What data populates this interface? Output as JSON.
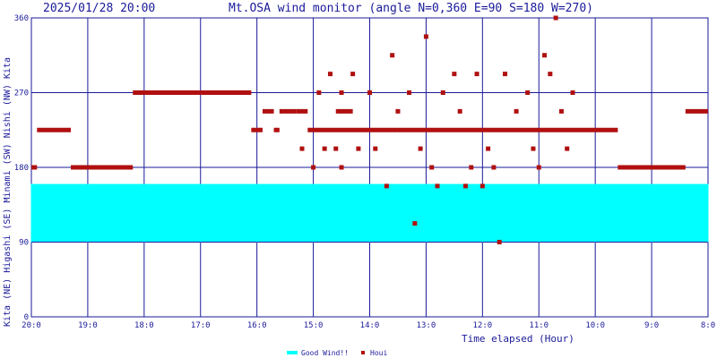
{
  "chart_data": {
    "type": "scatter",
    "timestamp": "2025/01/28 20:00",
    "title": "Mt.OSA wind monitor (angle N=0,360 E=90 S=180 W=270)",
    "xlabel": "Time elapsed (Hour)",
    "ylabel": "Kita (NE) Higashi (SE) Minami (SW) Nishi (NW) Kita",
    "x_unit": "hours elapsed from 20:00",
    "x_range": [
      0,
      12
    ],
    "x_ticks": [
      {
        "x": 0,
        "label": "20:0"
      },
      {
        "x": 1,
        "label": "19:0"
      },
      {
        "x": 2,
        "label": "18:0"
      },
      {
        "x": 3,
        "label": "17:0"
      },
      {
        "x": 4,
        "label": "16:0"
      },
      {
        "x": 5,
        "label": "15:0"
      },
      {
        "x": 6,
        "label": "14:0"
      },
      {
        "x": 7,
        "label": "13:0"
      },
      {
        "x": 8,
        "label": "12:0"
      },
      {
        "x": 9,
        "label": "11:0"
      },
      {
        "x": 10,
        "label": "10:0"
      },
      {
        "x": 11,
        "label": "9:0"
      },
      {
        "x": 12,
        "label": "8:0"
      }
    ],
    "y_range": [
      0,
      360
    ],
    "y_ticks": [
      {
        "y": 0,
        "label": "0"
      },
      {
        "y": 90,
        "label": "90"
      },
      {
        "y": 180,
        "label": "180"
      },
      {
        "y": 270,
        "label": "270"
      },
      {
        "y": 360,
        "label": "360"
      }
    ],
    "grid": true,
    "legend_position": "bottom-center",
    "good_wind": {
      "name": "Good Wind!!",
      "color": "#00ffff",
      "range": [
        90,
        160
      ]
    },
    "series": [
      {
        "name": "Houi",
        "color": "#b01010",
        "segments": [
          {
            "x": [
              0.0,
              0.1
            ],
            "y": 180
          },
          {
            "x": [
              0.1,
              0.7
            ],
            "y": 225
          },
          {
            "x": [
              0.7,
              1.8
            ],
            "y": 180
          },
          {
            "x": [
              1.8,
              3.9
            ],
            "y": 270
          },
          {
            "x": [
              3.9,
              4.1
            ],
            "y": 225
          },
          {
            "x": [
              4.1,
              4.3
            ],
            "y": 247.5
          },
          {
            "x": [
              4.3,
              4.4
            ],
            "y": 225
          },
          {
            "x": [
              4.4,
              4.7
            ],
            "y": 247.5
          },
          {
            "x": [
              4.7,
              4.9
            ],
            "y": 247.5
          },
          {
            "x": [
              4.9,
              6.5
            ],
            "y": 225
          },
          {
            "x": [
              5.4,
              5.7
            ],
            "y": 247.5
          },
          {
            "x": [
              6.5,
              8.4
            ],
            "y": 225
          },
          {
            "x": [
              8.4,
              10.4
            ],
            "y": 225
          },
          {
            "x": [
              10.4,
              11.6
            ],
            "y": 180
          },
          {
            "x": [
              11.6,
              12.0
            ],
            "y": 247.5
          }
        ],
        "points": [
          {
            "x": 4.8,
            "y": 202.5
          },
          {
            "x": 5.0,
            "y": 180
          },
          {
            "x": 5.1,
            "y": 270
          },
          {
            "x": 5.2,
            "y": 202.5
          },
          {
            "x": 5.3,
            "y": 292.5
          },
          {
            "x": 5.4,
            "y": 202.5
          },
          {
            "x": 5.5,
            "y": 180
          },
          {
            "x": 5.5,
            "y": 270
          },
          {
            "x": 5.7,
            "y": 292.5
          },
          {
            "x": 5.8,
            "y": 202.5
          },
          {
            "x": 6.0,
            "y": 270
          },
          {
            "x": 6.1,
            "y": 202.5
          },
          {
            "x": 6.3,
            "y": 157.5
          },
          {
            "x": 6.4,
            "y": 315
          },
          {
            "x": 6.5,
            "y": 247.5
          },
          {
            "x": 6.7,
            "y": 270
          },
          {
            "x": 6.8,
            "y": 112.5
          },
          {
            "x": 6.9,
            "y": 202.5
          },
          {
            "x": 7.0,
            "y": 337.5
          },
          {
            "x": 7.1,
            "y": 180
          },
          {
            "x": 7.2,
            "y": 157.5
          },
          {
            "x": 7.3,
            "y": 270
          },
          {
            "x": 7.5,
            "y": 292.5
          },
          {
            "x": 7.6,
            "y": 247.5
          },
          {
            "x": 7.7,
            "y": 157.5
          },
          {
            "x": 7.8,
            "y": 180
          },
          {
            "x": 7.9,
            "y": 292.5
          },
          {
            "x": 8.0,
            "y": 157.5
          },
          {
            "x": 8.1,
            "y": 202.5
          },
          {
            "x": 8.2,
            "y": 180
          },
          {
            "x": 8.3,
            "y": 90
          },
          {
            "x": 8.4,
            "y": 292.5
          },
          {
            "x": 8.6,
            "y": 247.5
          },
          {
            "x": 8.8,
            "y": 270
          },
          {
            "x": 9.0,
            "y": 180
          },
          {
            "x": 9.2,
            "y": 292.5
          },
          {
            "x": 9.3,
            "y": 360
          },
          {
            "x": 9.4,
            "y": 247.5
          },
          {
            "x": 9.5,
            "y": 202.5
          },
          {
            "x": 9.6,
            "y": 270
          },
          {
            "x": 9.1,
            "y": 315
          },
          {
            "x": 8.9,
            "y": 202.5
          }
        ]
      }
    ]
  }
}
